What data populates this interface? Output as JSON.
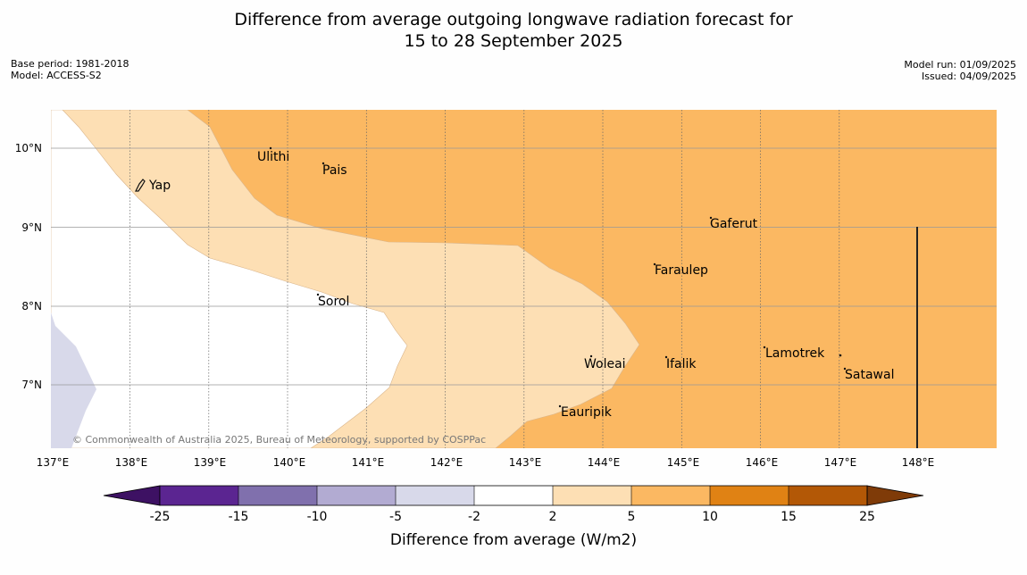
{
  "title": {
    "line1": "Difference from average outgoing longwave radiation forecast for",
    "line2": "15 to 28 September 2025"
  },
  "meta": {
    "base_period": "Base period: 1981-2018",
    "model": "Model: ACCESS-S2",
    "model_run": "Model run: 01/09/2025",
    "issued": "Issued: 04/09/2025"
  },
  "map": {
    "lon_ticks": [
      "137°E",
      "138°E",
      "139°E",
      "140°E",
      "141°E",
      "142°E",
      "143°E",
      "144°E",
      "145°E",
      "146°E",
      "147°E",
      "148°E"
    ],
    "lat_ticks": [
      "10°N",
      "9°N",
      "8°N",
      "7°N"
    ],
    "places": [
      {
        "name": "Ulithi"
      },
      {
        "name": "Pais"
      },
      {
        "name": "Yap"
      },
      {
        "name": "Gaferut"
      },
      {
        "name": "Faraulep"
      },
      {
        "name": "Sorol"
      },
      {
        "name": "Lamotrek"
      },
      {
        "name": "Woleai"
      },
      {
        "name": "Ifalik"
      },
      {
        "name": "Satawal"
      },
      {
        "name": "Eauripik"
      }
    ],
    "attribution": "© Commonwealth of Australia 2025, Bureau of Meteorology, supported by COSPPac",
    "region_colors": {
      "strong_positive": "#fbb862",
      "weak_positive": "#fddfb4",
      "neutral": "#ffffff",
      "weak_negative": "#d8d9ea"
    }
  },
  "colorbar": {
    "ticks": [
      "-25",
      "-15",
      "-10",
      "-5",
      "-2",
      "2",
      "5",
      "10",
      "15",
      "25"
    ],
    "colors": [
      "#3d1163",
      "#5b2591",
      "#8070ad",
      "#b2abd2",
      "#d8d9ea",
      "#ffffff",
      "#fddfb4",
      "#fbb862",
      "#e08214",
      "#b35806",
      "#7f3b08"
    ],
    "label": "Difference from average (W/m2)"
  }
}
